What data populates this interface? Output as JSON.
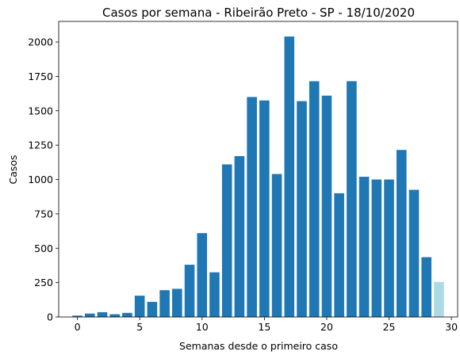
{
  "chart_data": {
    "type": "bar",
    "title": "Casos por semana - Ribeirão Preto - SP - 18/10/2020",
    "xlabel": "Semanas desde o primeiro caso",
    "ylabel": "Casos",
    "x": [
      0,
      1,
      2,
      3,
      4,
      5,
      6,
      7,
      8,
      9,
      10,
      11,
      12,
      13,
      14,
      15,
      16,
      17,
      18,
      19,
      20,
      21,
      22,
      23,
      24,
      25,
      26,
      27,
      28,
      29
    ],
    "values": [
      10,
      25,
      35,
      20,
      30,
      155,
      110,
      195,
      205,
      380,
      610,
      325,
      1110,
      1170,
      1600,
      1575,
      1040,
      2040,
      1570,
      1715,
      1610,
      900,
      1715,
      1020,
      1000,
      1000,
      1215,
      925,
      435,
      255
    ],
    "colors": [
      "#1f77b4",
      "#1f77b4",
      "#1f77b4",
      "#1f77b4",
      "#1f77b4",
      "#1f77b4",
      "#1f77b4",
      "#1f77b4",
      "#1f77b4",
      "#1f77b4",
      "#1f77b4",
      "#1f77b4",
      "#1f77b4",
      "#1f77b4",
      "#1f77b4",
      "#1f77b4",
      "#1f77b4",
      "#1f77b4",
      "#1f77b4",
      "#1f77b4",
      "#1f77b4",
      "#1f77b4",
      "#1f77b4",
      "#1f77b4",
      "#1f77b4",
      "#1f77b4",
      "#1f77b4",
      "#1f77b4",
      "#1f77b4",
      "#add8e6"
    ],
    "xlim": [
      -1.5,
      30.5
    ],
    "ylim": [
      0,
      2150
    ],
    "xticks": [
      0,
      5,
      10,
      15,
      20,
      25,
      30
    ],
    "yticks": [
      0,
      250,
      500,
      750,
      1000,
      1250,
      1500,
      1750,
      2000
    ],
    "grid": false
  }
}
